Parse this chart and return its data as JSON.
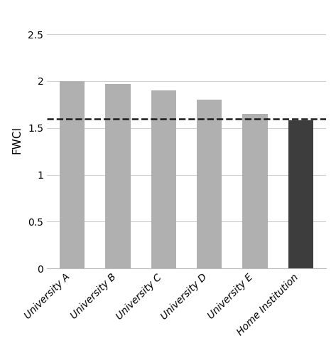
{
  "categories": [
    "University A",
    "University B",
    "University C",
    "University D",
    "University E",
    "Home Institution"
  ],
  "values": [
    2.0,
    1.97,
    1.9,
    1.8,
    1.65,
    1.58
  ],
  "bar_colors": [
    "#b0b0b0",
    "#b0b0b0",
    "#b0b0b0",
    "#b0b0b0",
    "#b0b0b0",
    "#3d3d3d"
  ],
  "dashed_line_y": 1.6,
  "ylabel": "FWCI",
  "ylim": [
    0,
    2.75
  ],
  "yticks": [
    0,
    0.5,
    1,
    1.5,
    2,
    2.5
  ],
  "ytick_labels": [
    "0",
    "0.5",
    "1",
    "1.5",
    "2",
    "2.5"
  ],
  "dashed_line_color": "#1a1a1a",
  "grid_color": "#d0d0d0",
  "background_color": "#ffffff",
  "bar_width": 0.55
}
